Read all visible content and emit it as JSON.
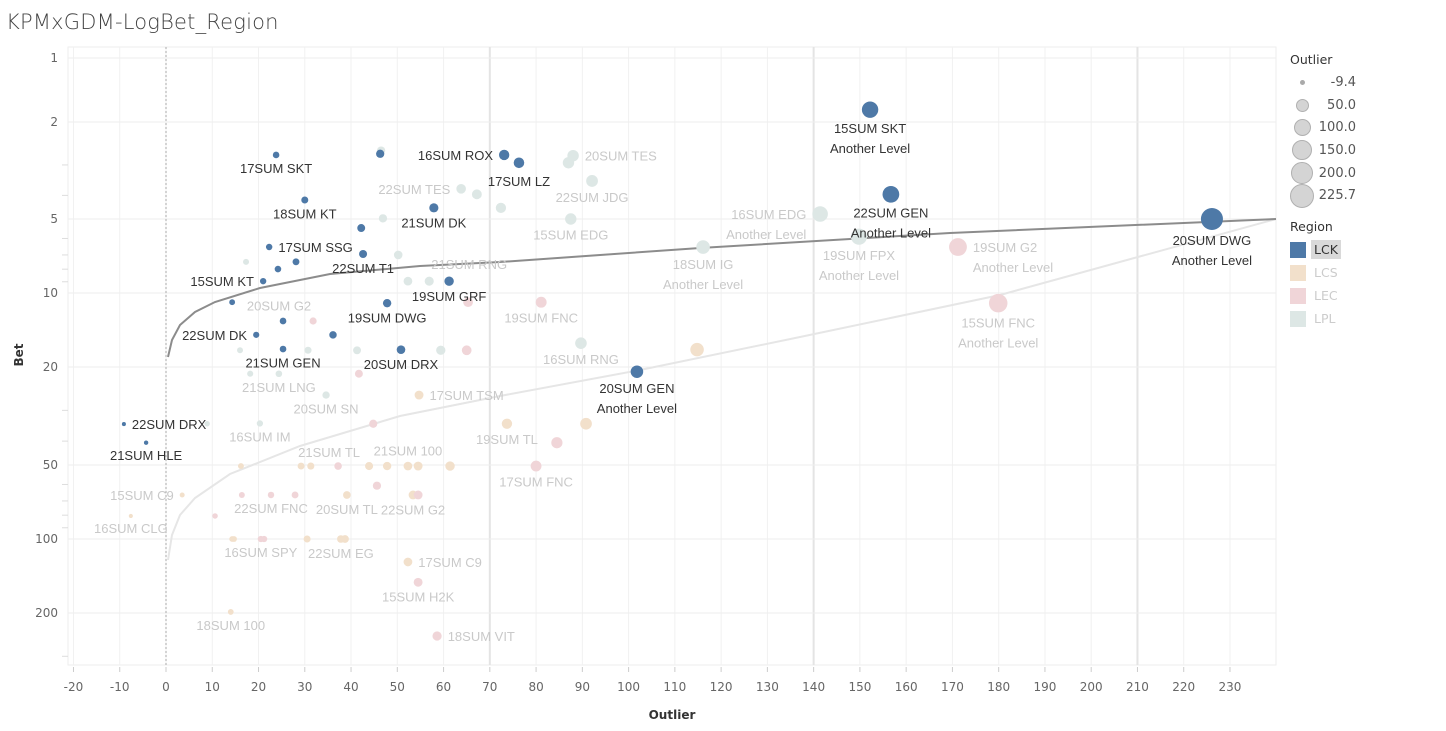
{
  "title": "KPMxGDM-LogBet_Region",
  "legend": {
    "size_title": "Outlier",
    "size_values": [
      "-9.4",
      "50.0",
      "100.0",
      "150.0",
      "200.0",
      "225.7"
    ],
    "color_title": "Region",
    "regions": [
      {
        "name": "LCK",
        "color": "#4e79a7",
        "selected": true
      },
      {
        "name": "LCS",
        "color": "#f2e0cb",
        "selected": false
      },
      {
        "name": "LEC",
        "color": "#f0d5d8",
        "selected": false
      },
      {
        "name": "LPL",
        "color": "#dde7e5",
        "selected": false
      }
    ]
  },
  "chart_data": {
    "type": "scatter",
    "title": "KPMxGDM-LogBet_Region",
    "xlabel": "Outlier",
    "ylabel": "Bet",
    "y_scale": "log",
    "x_ticks": [
      -20,
      -10,
      0,
      10,
      20,
      30,
      40,
      50,
      60,
      70,
      80,
      90,
      100,
      110,
      120,
      130,
      140,
      150,
      160,
      170,
      180,
      190,
      200,
      210,
      220,
      230
    ],
    "y_ticks": [
      1,
      2,
      5,
      10,
      20,
      50,
      100,
      200
    ],
    "xlim": [
      -22,
      240
    ],
    "ylim": [
      1,
      290
    ],
    "grid": true,
    "size_by": "Outlier",
    "color_by": "Region",
    "trend_lines": 2,
    "points": [
      {
        "x": 23.8,
        "y": 2.73,
        "region": "LCK",
        "label": "17SUM SKT"
      },
      {
        "x": 46.3,
        "y": 2.7,
        "region": "LCK"
      },
      {
        "x": 73.1,
        "y": 2.73,
        "region": "LCK",
        "label": "16SUM ROX"
      },
      {
        "x": 76.3,
        "y": 2.94,
        "region": "LCK",
        "label": "17SUM LZ"
      },
      {
        "x": 30.0,
        "y": 4.18,
        "region": "LCK",
        "label": "18SUM KT"
      },
      {
        "x": 57.9,
        "y": 4.5,
        "region": "LCK",
        "label": "21SUM DK"
      },
      {
        "x": 42.2,
        "y": 5.44,
        "region": "LCK"
      },
      {
        "x": 22.3,
        "y": 6.5,
        "region": "LCK",
        "label": "17SUM SSG"
      },
      {
        "x": 42.6,
        "y": 6.94,
        "region": "LCK",
        "label": "22SUM T1"
      },
      {
        "x": 28.1,
        "y": 7.47,
        "region": "LCK"
      },
      {
        "x": 24.2,
        "y": 7.99,
        "region": "LCK"
      },
      {
        "x": 21.0,
        "y": 8.95,
        "region": "LCK",
        "label": "15SUM KT"
      },
      {
        "x": 61.2,
        "y": 8.95,
        "region": "LCK",
        "label": "19SUM GRF"
      },
      {
        "x": 14.3,
        "y": 10.9,
        "region": "LCK"
      },
      {
        "x": 47.8,
        "y": 11.0,
        "region": "LCK",
        "label": "19SUM DWG"
      },
      {
        "x": 25.3,
        "y": 13.0,
        "region": "LCK"
      },
      {
        "x": 19.5,
        "y": 14.8,
        "region": "LCK",
        "label": "22SUM DK"
      },
      {
        "x": 36.1,
        "y": 14.8,
        "region": "LCK"
      },
      {
        "x": 25.3,
        "y": 16.9,
        "region": "LCK",
        "label": "21SUM GEN"
      },
      {
        "x": 50.8,
        "y": 17.0,
        "region": "LCK",
        "label": "20SUM DRX"
      },
      {
        "x": 101.8,
        "y": 20.9,
        "region": "LCK",
        "label": "20SUM GEN",
        "sub": "Another Level"
      },
      {
        "x": -9.1,
        "y": 34.1,
        "region": "LCK",
        "label": "22SUM DRX"
      },
      {
        "x": -4.3,
        "y": 40.6,
        "region": "LCK",
        "label": "21SUM HLE"
      },
      {
        "x": 152.2,
        "y": 1.75,
        "region": "LCK",
        "label": "15SUM SKT",
        "sub": "Another Level"
      },
      {
        "x": 156.7,
        "y": 3.96,
        "region": "LCK",
        "label": "22SUM GEN",
        "sub": "Another Level"
      },
      {
        "x": 226.1,
        "y": 5.0,
        "region": "LCK",
        "label": "20SUM DWG",
        "sub": "Another Level"
      },
      {
        "x": 46.5,
        "y": 2.62,
        "region": "LPL"
      },
      {
        "x": 88.0,
        "y": 2.75,
        "region": "LPL",
        "label": "20SUM TES"
      },
      {
        "x": 87.0,
        "y": 2.94,
        "region": "LPL"
      },
      {
        "x": 63.8,
        "y": 3.76,
        "region": "LPL",
        "label": "22SUM TES"
      },
      {
        "x": 67.2,
        "y": 3.96,
        "region": "LPL"
      },
      {
        "x": 92.1,
        "y": 3.49,
        "region": "LPL",
        "label": "22SUM JDG"
      },
      {
        "x": 72.4,
        "y": 4.5,
        "region": "LPL"
      },
      {
        "x": 46.9,
        "y": 4.97,
        "region": "LPL"
      },
      {
        "x": 87.5,
        "y": 5.0,
        "region": "LPL",
        "label": "15SUM EDG"
      },
      {
        "x": 141.4,
        "y": 4.77,
        "region": "LPL",
        "label": "16SUM EDG",
        "sub": "Another Level"
      },
      {
        "x": 149.8,
        "y": 5.9,
        "region": "LPL",
        "label": "19SUM FPX",
        "sub": "Another Level"
      },
      {
        "x": 116.1,
        "y": 6.5,
        "region": "LPL",
        "label": "18SUM IG",
        "sub": "Another Level"
      },
      {
        "x": 50.2,
        "y": 7.0,
        "region": "LPL"
      },
      {
        "x": 17.3,
        "y": 7.47,
        "region": "LPL"
      },
      {
        "x": 52.3,
        "y": 8.95,
        "region": "LPL"
      },
      {
        "x": 56.9,
        "y": 8.95,
        "region": "LPL",
        "label": "21SUM RNG"
      },
      {
        "x": 16.0,
        "y": 17.1,
        "region": "LPL",
        "label": "20SUM G2"
      },
      {
        "x": 30.7,
        "y": 17.1,
        "region": "LPL"
      },
      {
        "x": 41.3,
        "y": 17.1,
        "region": "LPL"
      },
      {
        "x": 59.4,
        "y": 17.1,
        "region": "LPL"
      },
      {
        "x": 18.2,
        "y": 21.3,
        "region": "LPL"
      },
      {
        "x": 24.4,
        "y": 21.3,
        "region": "LPL",
        "label": "21SUM LNG"
      },
      {
        "x": 34.6,
        "y": 26.0,
        "region": "LPL",
        "label": "20SUM SN"
      },
      {
        "x": 20.3,
        "y": 33.9,
        "region": "LPL",
        "label": "16SUM IM"
      },
      {
        "x": 8.9,
        "y": 34.0,
        "region": "LPL"
      },
      {
        "x": 89.7,
        "y": 16.0,
        "region": "LPL",
        "label": "16SUM RNG"
      },
      {
        "x": 54.7,
        "y": 26.0,
        "region": "LCS",
        "label": "17SUM TSM"
      },
      {
        "x": 114.8,
        "y": 17.0,
        "region": "LCS"
      },
      {
        "x": 90.8,
        "y": 34.0,
        "region": "LCS"
      },
      {
        "x": 73.7,
        "y": 34.0,
        "region": "LCS",
        "label": "19SUM TL"
      },
      {
        "x": 16.2,
        "y": 50.5,
        "region": "LCS"
      },
      {
        "x": 29.2,
        "y": 50.5,
        "region": "LCS",
        "label": "21SUM TL"
      },
      {
        "x": 31.3,
        "y": 50.5,
        "region": "LCS"
      },
      {
        "x": 43.9,
        "y": 50.5,
        "region": "LCS"
      },
      {
        "x": 47.8,
        "y": 50.5,
        "region": "LCS"
      },
      {
        "x": 52.3,
        "y": 50.5,
        "region": "LCS",
        "label": "21SUM 100"
      },
      {
        "x": 54.5,
        "y": 50.5,
        "region": "LCS"
      },
      {
        "x": 61.4,
        "y": 50.5,
        "region": "LCS"
      },
      {
        "x": 3.5,
        "y": 66.2,
        "region": "LCS",
        "label": "15SUM C9"
      },
      {
        "x": 39.1,
        "y": 66.2,
        "region": "LCS",
        "label": "20SUM TL"
      },
      {
        "x": 53.4,
        "y": 66.2,
        "region": "LCS",
        "label": "22SUM G2"
      },
      {
        "x": -7.6,
        "y": 80.6,
        "region": "LCS",
        "label": "16SUM CLG"
      },
      {
        "x": 14.3,
        "y": 100,
        "region": "LCS"
      },
      {
        "x": 14.7,
        "y": 100,
        "region": "LCS"
      },
      {
        "x": 30.5,
        "y": 100,
        "region": "LCS"
      },
      {
        "x": 37.8,
        "y": 100,
        "region": "LCS",
        "label": "22SUM EG"
      },
      {
        "x": 38.7,
        "y": 100,
        "region": "LCS"
      },
      {
        "x": 52.3,
        "y": 124,
        "region": "LCS",
        "label": "17SUM C9"
      },
      {
        "x": 14.0,
        "y": 198,
        "region": "LCS",
        "label": "18SUM 100"
      },
      {
        "x": 37.2,
        "y": 50.5,
        "region": "LEC"
      },
      {
        "x": 16.4,
        "y": 66.2,
        "region": "LEC"
      },
      {
        "x": 22.7,
        "y": 66.2,
        "region": "LEC",
        "label": "22SUM FNC"
      },
      {
        "x": 27.9,
        "y": 66.2,
        "region": "LEC"
      },
      {
        "x": 54.5,
        "y": 66.2,
        "region": "LEC"
      },
      {
        "x": 45.6,
        "y": 60.7,
        "region": "LEC"
      },
      {
        "x": 10.6,
        "y": 80.6,
        "region": "LEC"
      },
      {
        "x": 20.5,
        "y": 100,
        "region": "LEC",
        "label": "16SUM SPY"
      },
      {
        "x": 21.2,
        "y": 100,
        "region": "LEC"
      },
      {
        "x": 54.5,
        "y": 150,
        "region": "LEC",
        "label": "15SUM H2K"
      },
      {
        "x": 58.6,
        "y": 248,
        "region": "LEC",
        "label": "18SUM VIT"
      },
      {
        "x": 80.0,
        "y": 50.5,
        "region": "LEC",
        "label": "17SUM FNC"
      },
      {
        "x": 81.1,
        "y": 10.9,
        "region": "LEC",
        "label": "19SUM FNC"
      },
      {
        "x": 84.5,
        "y": 40.6,
        "region": "LEC"
      },
      {
        "x": 31.8,
        "y": 13.0,
        "region": "LEC"
      },
      {
        "x": 65.0,
        "y": 17.1,
        "region": "LEC"
      },
      {
        "x": 65.3,
        "y": 10.9,
        "region": "LEC"
      },
      {
        "x": 41.7,
        "y": 21.3,
        "region": "LEC"
      },
      {
        "x": 44.8,
        "y": 34.0,
        "region": "LEC"
      },
      {
        "x": 171.2,
        "y": 6.5,
        "region": "LEC",
        "label": "19SUM G2",
        "sub": "Another Level"
      },
      {
        "x": 179.9,
        "y": 11.0,
        "region": "LEC",
        "label": "15SUM FNC",
        "sub": "Another Level"
      }
    ]
  }
}
